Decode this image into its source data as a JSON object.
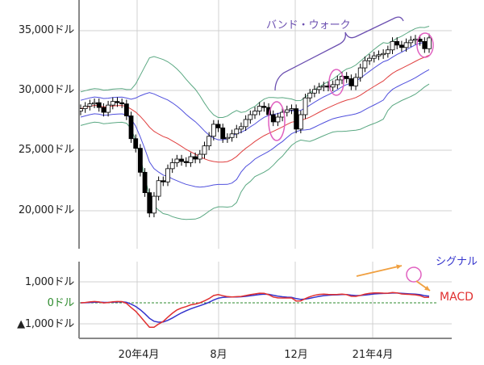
{
  "chart_data": {
    "type": "candlestick+line",
    "title": "",
    "panels": [
      {
        "name": "price",
        "ylabel": "",
        "y_ticks": [
          "35,000ドル",
          "30,000ドル",
          "25,000ドル",
          "20,000ドル"
        ],
        "y_tick_values": [
          35000,
          30000,
          25000,
          20000
        ],
        "ylim": [
          17000,
          37500
        ],
        "series": [
          {
            "name": "+2σ",
            "color": "#5aa882"
          },
          {
            "name": "+1σ",
            "color": "#5050dd"
          },
          {
            "name": "MA",
            "color": "#e04040"
          },
          {
            "name": "-1σ",
            "color": "#5050dd"
          },
          {
            "name": "-2σ",
            "color": "#5aa882"
          }
        ],
        "annotation": "バンド・ウォーク"
      },
      {
        "name": "macd",
        "y_ticks": [
          "1,000ドル",
          "0ドル",
          "▲1,000ドル"
        ],
        "y_tick_values": [
          1000,
          0,
          -1000
        ],
        "series": [
          {
            "name": "シグナル",
            "color": "#3333cc"
          },
          {
            "name": "MACD",
            "color": "#e03030"
          }
        ]
      }
    ],
    "x_ticks": [
      "20年4月",
      "8月",
      "12月",
      "21年4月"
    ],
    "grid": true,
    "candles_close": [
      28500,
      28700,
      28900,
      29000,
      28600,
      28200,
      28800,
      29100,
      29000,
      28900,
      27900,
      26000,
      25200,
      23200,
      21500,
      19800,
      21200,
      22500,
      22400,
      23500,
      24000,
      24300,
      24100,
      24000,
      24500,
      24300,
      24700,
      25400,
      26200,
      27200,
      26900,
      26000,
      26100,
      26400,
      26800,
      27000,
      27600,
      28000,
      28300,
      28700,
      28600,
      28000,
      27400,
      27800,
      28200,
      28400,
      28500,
      26800,
      28000,
      29400,
      29800,
      30100,
      30300,
      30400,
      30300,
      30500,
      30900,
      31200,
      31000,
      30400,
      31100,
      31900,
      32500,
      32700,
      32900,
      33000,
      33100,
      33400,
      34100,
      33800,
      33600,
      34000,
      34200,
      34300,
      34100,
      33500,
      34400
    ],
    "macd_note": "MACD crosses below signal at right edge"
  },
  "labels": {
    "y_price": [
      "35,000ドル",
      "30,000ドル",
      "25,000ドル",
      "20,000ドル"
    ],
    "y_macd": [
      "1,000ドル",
      "0ドル",
      "▲1,000ドル"
    ],
    "x": [
      "20年4月",
      "8月",
      "12月",
      "21年4月"
    ],
    "band_walk": "バンド・ウォーク",
    "signal": "シグナル",
    "macd": "MACD"
  },
  "colors": {
    "outer_band": "#5aa882",
    "inner_band": "#5050dd",
    "ma": "#e04040",
    "macd": "#e03030",
    "signal": "#3333cc",
    "highlight": "#e060c0",
    "arrow": "#f0a040",
    "zero_line": "#2e8b2e",
    "grid": "#d0d0d0",
    "axis": "#888888"
  }
}
